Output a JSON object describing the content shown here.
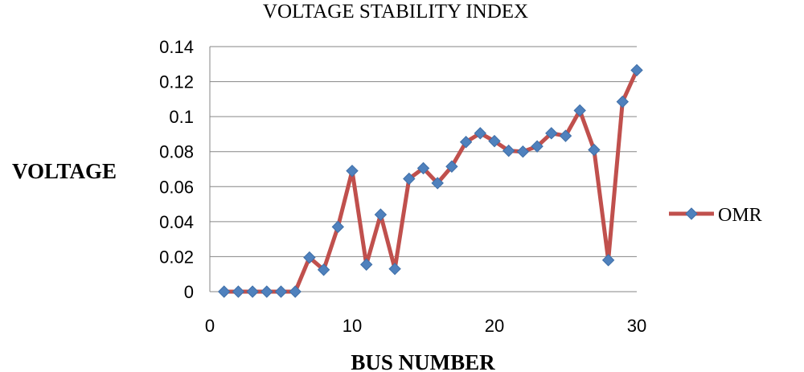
{
  "chart_data": {
    "type": "line",
    "title": "VOLTAGE STABILITY INDEX",
    "xlabel": "BUS NUMBER",
    "ylabel": "VOLTAGE",
    "xlim": [
      0,
      30
    ],
    "ylim": [
      0,
      0.14
    ],
    "x_ticks": [
      "0",
      "10",
      "20",
      "30"
    ],
    "y_ticks": [
      "0",
      "0.02",
      "0.04",
      "0.06",
      "0.08",
      "0.1",
      "0.12",
      "0.14"
    ],
    "grid": "horizontal",
    "legend_position": "right",
    "series": [
      {
        "name": "OMR",
        "color": "#C0504D",
        "marker_color": "#4F81BD",
        "marker": "diamond",
        "x": [
          1,
          2,
          3,
          4,
          5,
          6,
          7,
          8,
          9,
          10,
          11,
          12,
          13,
          14,
          15,
          16,
          17,
          18,
          19,
          20,
          21,
          22,
          23,
          24,
          25,
          26,
          27,
          28,
          29,
          30
        ],
        "y": [
          0,
          0,
          0,
          0,
          0,
          0,
          0.0195,
          0.0125,
          0.037,
          0.069,
          0.0155,
          0.044,
          0.013,
          0.0645,
          0.0705,
          0.062,
          0.0715,
          0.0855,
          0.0905,
          0.086,
          0.0805,
          0.08,
          0.083,
          0.0905,
          0.089,
          0.1035,
          0.081,
          0.018,
          0.1085,
          0.1265
        ]
      }
    ]
  }
}
